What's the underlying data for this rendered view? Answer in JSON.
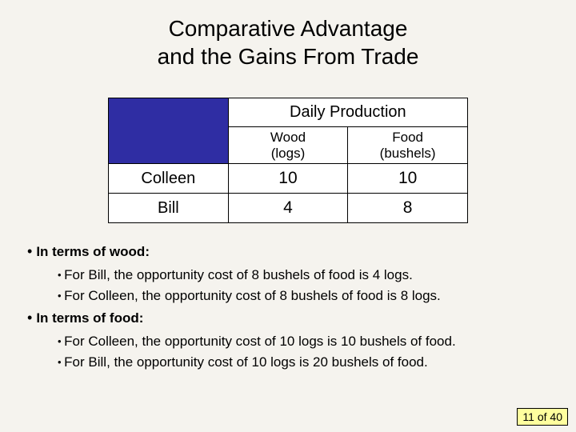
{
  "title_line1": "Comparative Advantage",
  "title_line2": "and the Gains From Trade",
  "table": {
    "header_span": "Daily Production",
    "col1": "Wood\n(logs)",
    "col2": "Food\n(bushels)",
    "rows": [
      {
        "label": "Colleen",
        "wood": "10",
        "food": "10"
      },
      {
        "label": "Bill",
        "wood": "4",
        "food": "8"
      }
    ]
  },
  "bullets": {
    "h1": "In terms of wood:",
    "h1_items": [
      "For Bill, the opportunity cost of 8 bushels of food is 4 logs.",
      "For Colleen, the opportunity cost of 8 bushels of food is 8 logs."
    ],
    "h2": "In terms of food:",
    "h2_items": [
      "For Colleen, the opportunity cost of 10 logs is 10 bushels of food.",
      "For Bill, the opportunity cost of 10 logs is 20 bushels of food."
    ]
  },
  "footer": {
    "current": "11",
    "sep": " of ",
    "total": "40"
  },
  "colors": {
    "background": "#f5f3ee",
    "table_blue": "#2f2da3",
    "footer_bg": "#ffff9e"
  }
}
